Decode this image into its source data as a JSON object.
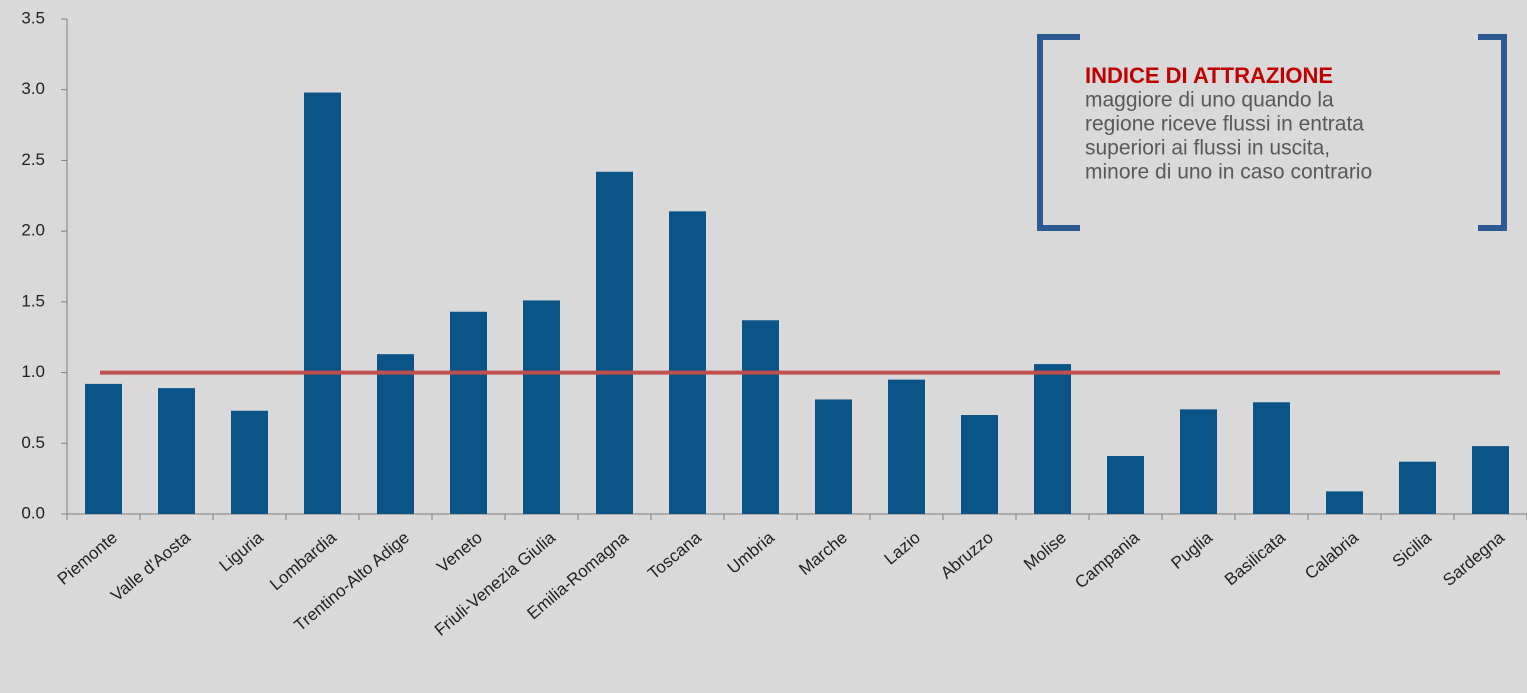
{
  "chart_data": {
    "type": "bar",
    "categories": [
      "Piemonte",
      "Valle d'Aosta",
      "Liguria",
      "Lombardia",
      "Trentino-Alto Adige",
      "Veneto",
      "Friuli-Venezia Giulia",
      "Emilia-Romagna",
      "Toscana",
      "Umbria",
      "Marche",
      "Lazio",
      "Abruzzo",
      "Molise",
      "Campania",
      "Puglia",
      "Basilicata",
      "Calabria",
      "Sicilia",
      "Sardegna"
    ],
    "values": [
      0.92,
      0.89,
      0.73,
      2.98,
      1.13,
      1.43,
      1.51,
      2.42,
      2.14,
      1.37,
      0.81,
      0.95,
      0.7,
      1.06,
      0.41,
      0.74,
      0.79,
      0.16,
      0.37,
      0.48
    ],
    "color": "#0b5488",
    "ylim": [
      0,
      3.5
    ],
    "yticks": [
      {
        "value": 0,
        "label": "0.0"
      },
      0.5,
      {
        "value": 1,
        "label": "1.0"
      },
      1.5,
      {
        "value": 2,
        "label": "2.0"
      },
      2.5,
      {
        "value": 3,
        "label": "3.0"
      },
      3.5
    ],
    "grid": false,
    "reference_line": {
      "value": 1,
      "color": "#c0504d"
    },
    "annotation": {
      "title": "INDICE DI ATTRAZIONE",
      "lines": [
        "maggiore di uno quando la",
        "regione riceve flussi in entrata",
        "superiori ai flussi in uscita,",
        "minore di uno in caso contrario"
      ]
    }
  }
}
